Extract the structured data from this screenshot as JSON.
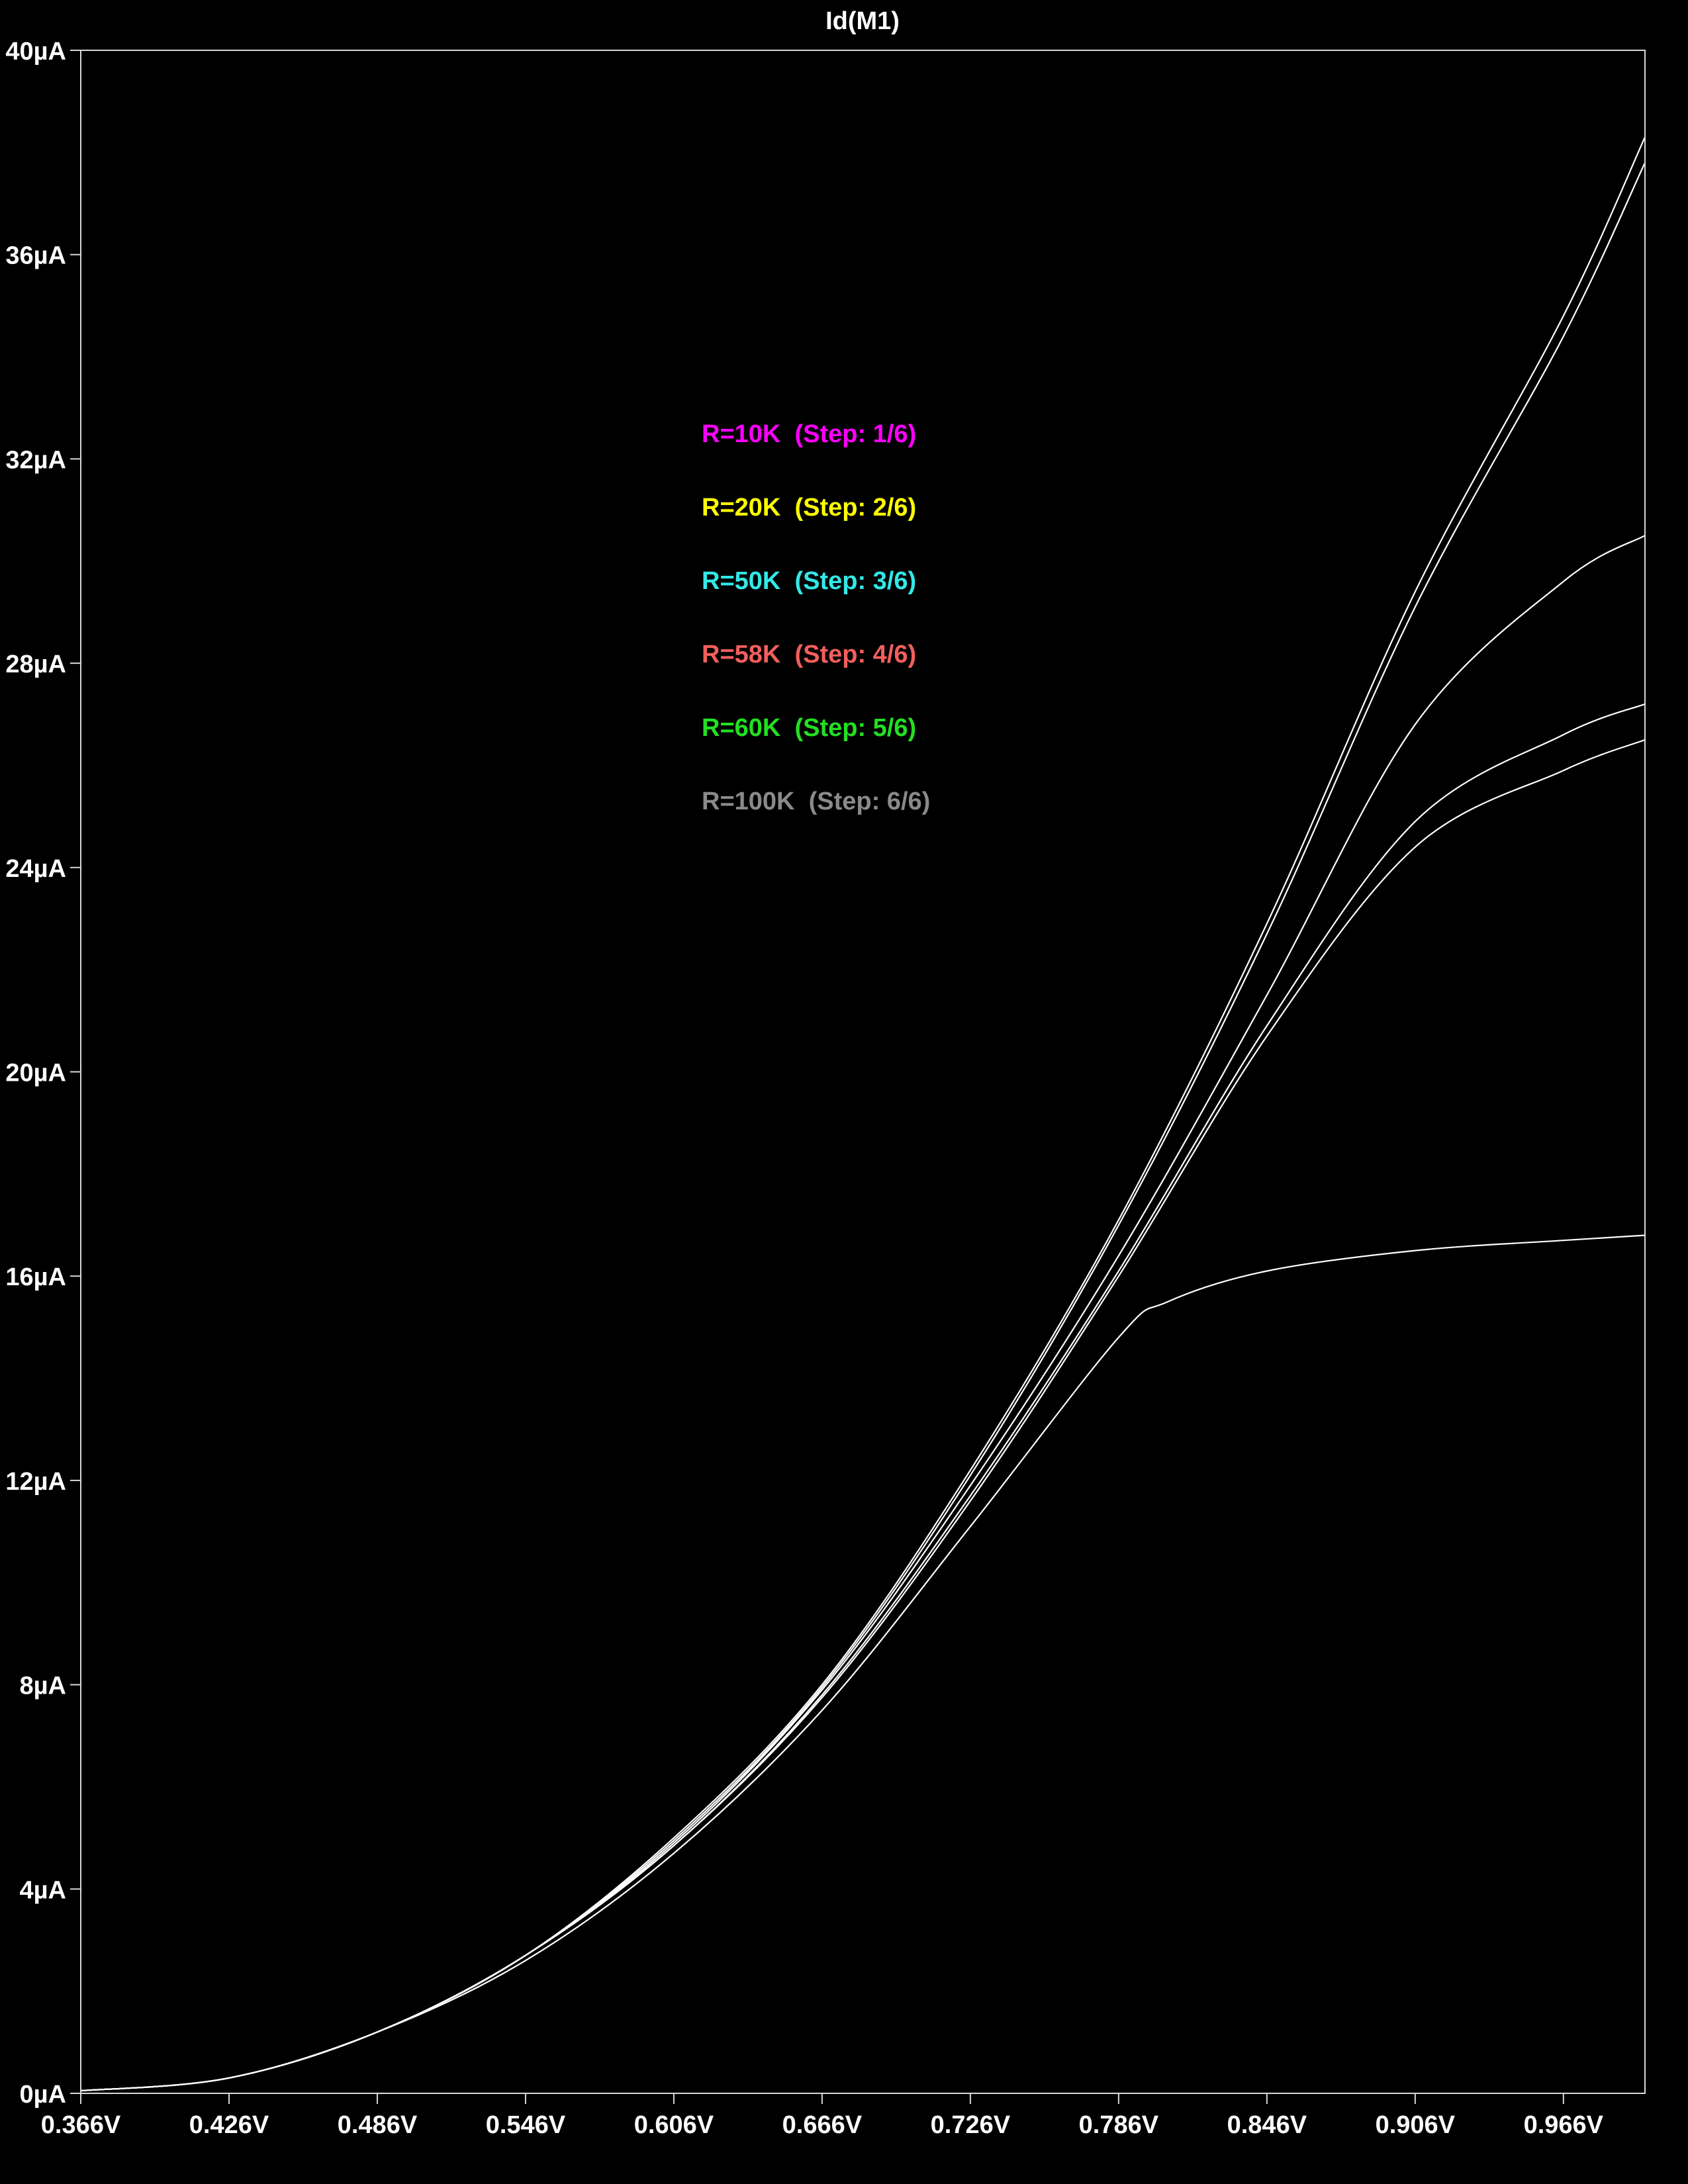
{
  "chart_data": {
    "type": "line",
    "title": "Id(M1)",
    "xlabel": "",
    "ylabel": "",
    "x_tick_labels": [
      "0.366V",
      "0.426V",
      "0.486V",
      "0.546V",
      "0.606V",
      "0.666V",
      "0.726V",
      "0.786V",
      "0.846V",
      "0.906V",
      "0.966V"
    ],
    "y_tick_labels": [
      "0µA",
      "4µA",
      "8µA",
      "12µA",
      "16µA",
      "20µA",
      "24µA",
      "28µA",
      "32µA",
      "36µA",
      "40µA"
    ],
    "xlim": [
      0.366,
      0.999
    ],
    "ylim": [
      0,
      40
    ],
    "grid": false,
    "background": "#000000",
    "trace_color": "#ffffff",
    "legend_position": "upper-center",
    "series": [
      {
        "name": "R=10K",
        "legend_text": "R=10K  (Step: 1/6)",
        "legend_color": "#ff00ff",
        "x": [
          0.366,
          0.426,
          0.486,
          0.546,
          0.606,
          0.666,
          0.726,
          0.786,
          0.846,
          0.906,
          0.966,
          0.999
        ],
        "y": [
          0.05,
          0.3,
          1.2,
          2.7,
          5.0,
          8.0,
          12.2,
          17.1,
          22.9,
          29.4,
          34.8,
          38.3
        ]
      },
      {
        "name": "R=20K",
        "legend_text": "R=20K  (Step: 2/6)",
        "legend_color": "#ffff00",
        "x": [
          0.366,
          0.426,
          0.486,
          0.546,
          0.606,
          0.666,
          0.726,
          0.786,
          0.846,
          0.906,
          0.966,
          0.999
        ],
        "y": [
          0.05,
          0.3,
          1.2,
          2.7,
          4.95,
          7.95,
          12.1,
          17.0,
          22.7,
          29.1,
          34.4,
          37.8
        ]
      },
      {
        "name": "R=50K",
        "legend_text": "R=50K  (Step: 3/6)",
        "legend_color": "#33e8e8",
        "x": [
          0.366,
          0.426,
          0.486,
          0.546,
          0.606,
          0.666,
          0.726,
          0.786,
          0.846,
          0.906,
          0.966,
          0.999
        ],
        "y": [
          0.05,
          0.3,
          1.2,
          2.7,
          4.9,
          7.9,
          11.9,
          16.4,
          21.5,
          26.8,
          29.6,
          30.5
        ]
      },
      {
        "name": "R=58K",
        "legend_text": "R=58K  (Step: 4/6)",
        "legend_color": "#f25f5c",
        "x": [
          0.366,
          0.426,
          0.486,
          0.546,
          0.606,
          0.666,
          0.726,
          0.786,
          0.846,
          0.906,
          0.966,
          0.999
        ],
        "y": [
          0.05,
          0.3,
          1.2,
          2.7,
          4.85,
          7.8,
          11.7,
          16.1,
          20.9,
          24.9,
          26.6,
          27.2
        ]
      },
      {
        "name": "R=60K",
        "legend_text": "R=60K  (Step: 5/6)",
        "legend_color": "#22e022",
        "x": [
          0.366,
          0.426,
          0.486,
          0.546,
          0.606,
          0.666,
          0.726,
          0.786,
          0.846,
          0.906,
          0.966,
          0.999
        ],
        "y": [
          0.05,
          0.3,
          1.2,
          2.7,
          4.85,
          7.75,
          11.6,
          16.0,
          20.7,
          24.4,
          25.9,
          26.5
        ]
      },
      {
        "name": "R=100K",
        "legend_text": "R=100K  (Step: 6/6)",
        "legend_color": "#8a8a8a",
        "x": [
          0.366,
          0.426,
          0.486,
          0.546,
          0.606,
          0.666,
          0.726,
          0.786,
          0.806,
          0.846,
          0.906,
          0.966,
          0.999
        ],
        "y": [
          0.05,
          0.3,
          1.2,
          2.6,
          4.7,
          7.5,
          11.1,
          14.8,
          15.5,
          16.1,
          16.5,
          16.7,
          16.8
        ]
      }
    ]
  }
}
